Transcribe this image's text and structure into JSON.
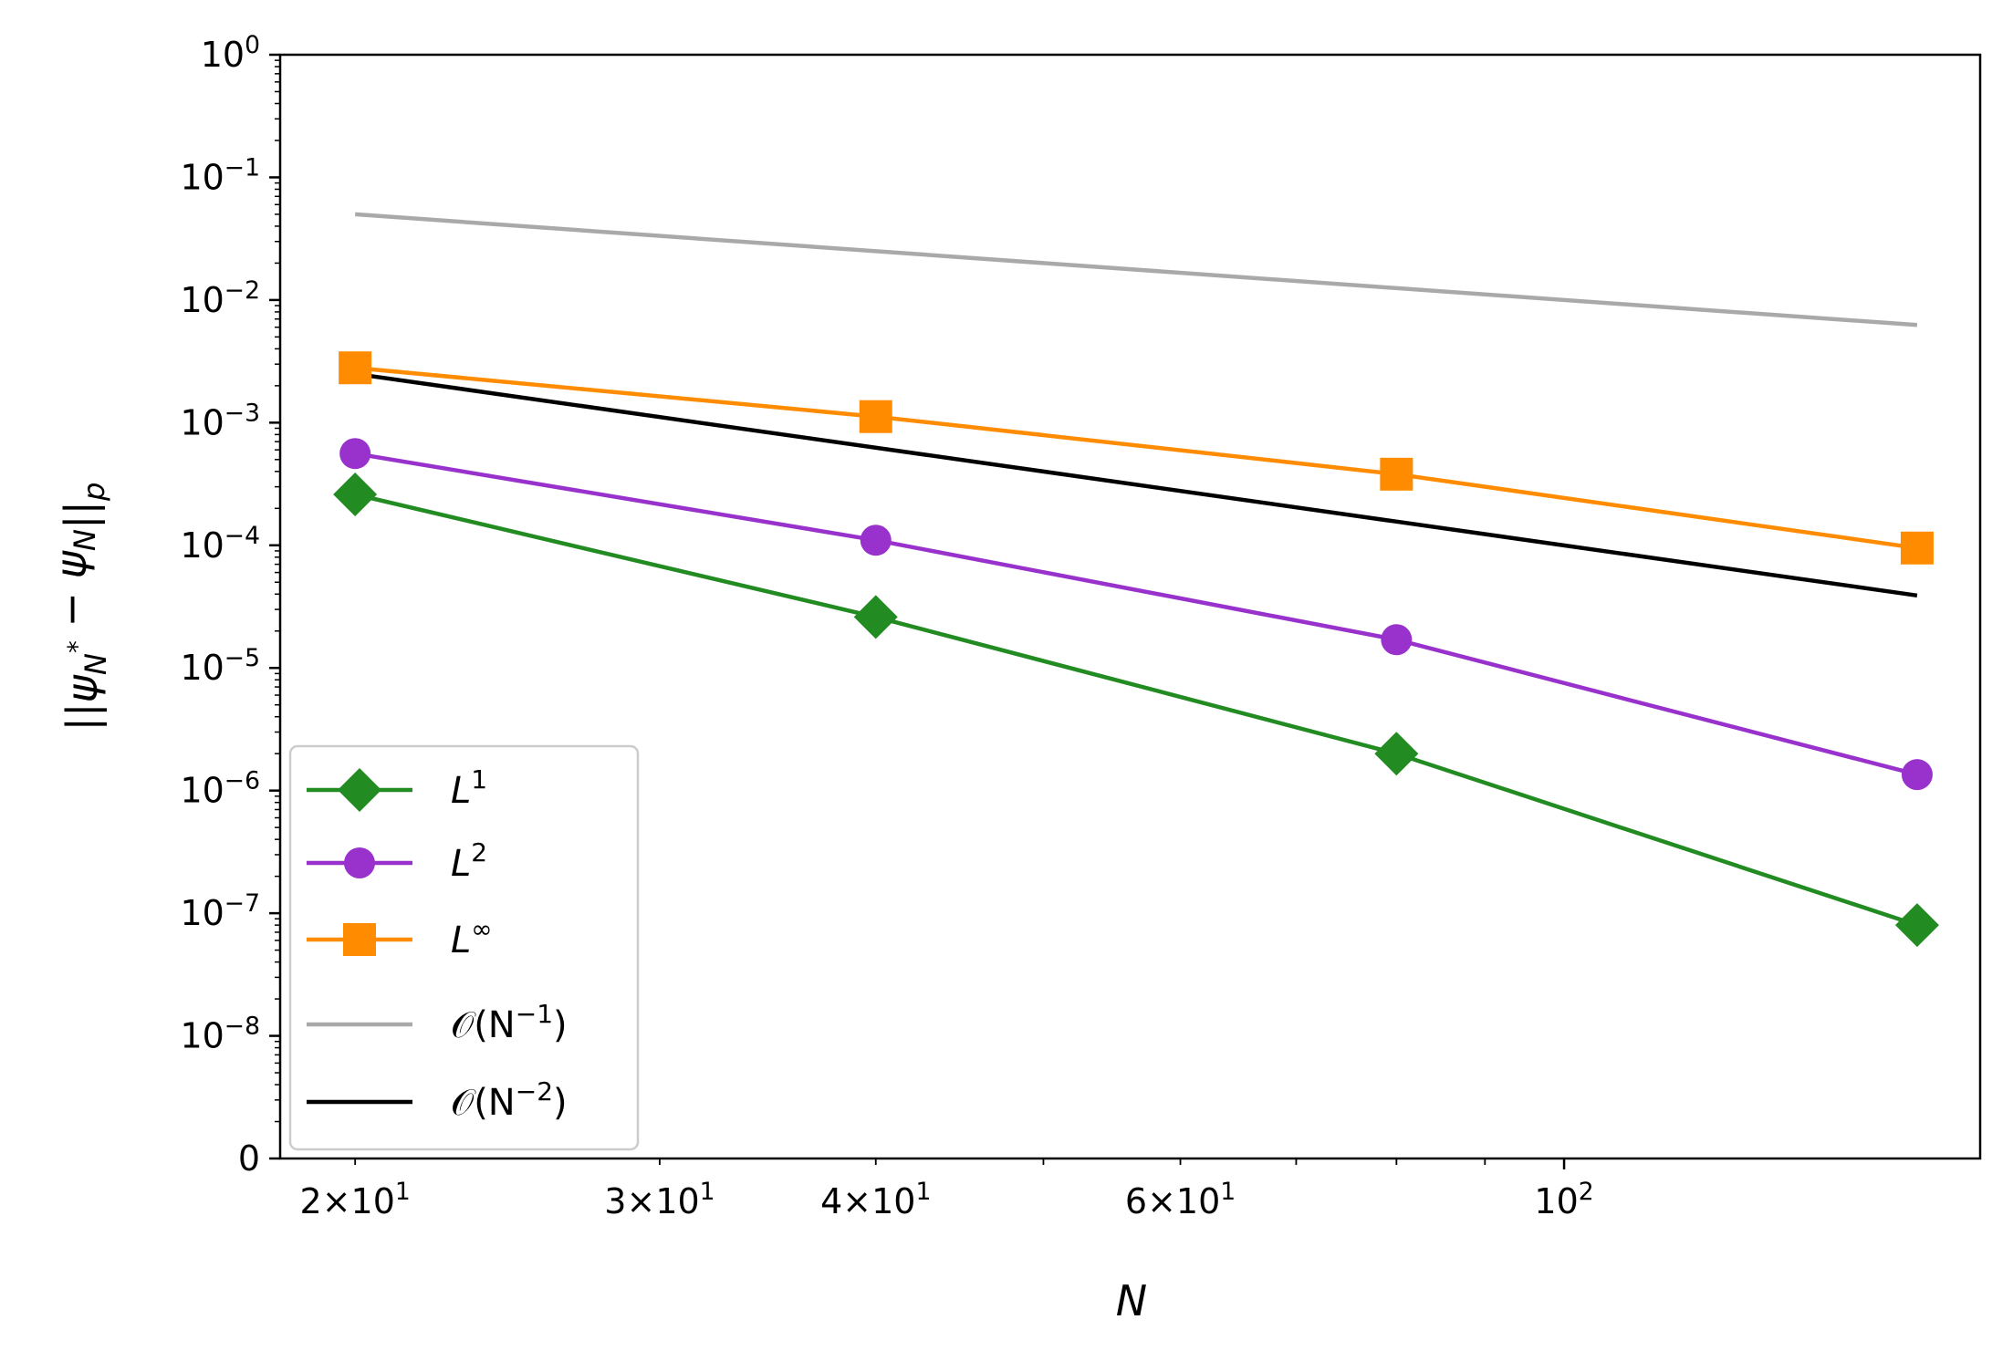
{
  "chart_data": {
    "type": "line",
    "xscale": "log",
    "yscale": "log",
    "xlabel": "N",
    "ylabel": "||ψ_N* − ψ_N||_p",
    "xlim": [
      18.1,
      174
    ],
    "ylim": [
      1e-09,
      1
    ],
    "x_tick_labels": [
      {
        "value": 20,
        "base": "2×10",
        "exp": "1"
      },
      {
        "value": 30,
        "base": "3×10",
        "exp": "1"
      },
      {
        "value": 40,
        "base": "4×10",
        "exp": "1"
      },
      {
        "value": 60,
        "base": "6×10",
        "exp": "1"
      },
      {
        "value": 100,
        "base": "10",
        "exp": "2"
      }
    ],
    "x_minor_ticks": [
      50,
      70,
      80,
      90
    ],
    "y_tick_labels": [
      {
        "value": 1,
        "base": "10",
        "exp": "0"
      },
      {
        "value": 0.1,
        "base": "10",
        "exp": "−1"
      },
      {
        "value": 0.01,
        "base": "10",
        "exp": "−2"
      },
      {
        "value": 0.001,
        "base": "10",
        "exp": "−3"
      },
      {
        "value": 0.0001,
        "base": "10",
        "exp": "−4"
      },
      {
        "value": 1e-05,
        "base": "10",
        "exp": "−5"
      },
      {
        "value": 1e-06,
        "base": "10",
        "exp": "−6"
      },
      {
        "value": 1e-07,
        "base": "10",
        "exp": "−7"
      },
      {
        "value": 1e-08,
        "base": "10",
        "exp": "−8"
      },
      {
        "value": 1e-09,
        "base": "0",
        "exp": ""
      }
    ],
    "series": [
      {
        "name": "L^1",
        "label_base": "L",
        "label_exp": "1",
        "color": "#228B22",
        "marker": "diamond",
        "x": [
          20,
          40,
          80,
          160
        ],
        "values": [
          0.00026,
          2.6e-05,
          2e-06,
          8e-08
        ]
      },
      {
        "name": "L^2",
        "label_base": "L",
        "label_exp": "2",
        "color": "#9932CC",
        "marker": "circle",
        "x": [
          20,
          40,
          80,
          160
        ],
        "values": [
          0.00056,
          0.00011,
          1.7e-05,
          1.35e-06
        ]
      },
      {
        "name": "L^∞",
        "label_base": "L",
        "label_exp": "∞",
        "color": "#FF8C00",
        "marker": "square",
        "x": [
          20,
          40,
          80,
          160
        ],
        "values": [
          0.0028,
          0.00112,
          0.00038,
          9.5e-05
        ]
      },
      {
        "name": "O(N^-1)",
        "label_base": "𝒪(N",
        "label_exp": "−1",
        "label_tail": ")",
        "color": "#A9A9A9",
        "marker": "none",
        "x": [
          20,
          160
        ],
        "values": [
          0.05,
          0.00625
        ]
      },
      {
        "name": "O(N^-2)",
        "label_base": "𝒪(N",
        "label_exp": "−2",
        "label_tail": ")",
        "color": "#000000",
        "marker": "none",
        "x": [
          20,
          160
        ],
        "values": [
          0.0025,
          3.9e-05
        ]
      }
    ],
    "legend_position": "lower-left",
    "grid": false
  }
}
